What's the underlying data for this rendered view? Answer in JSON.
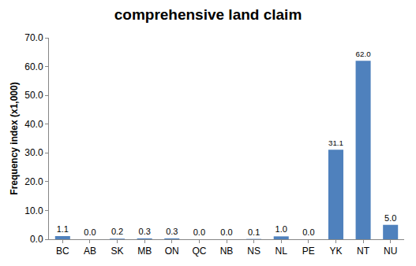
{
  "chart_data": {
    "type": "bar",
    "title": "comprehensive land claim",
    "y_label": "Frequency index (x1,000)",
    "categories": [
      "BC",
      "AB",
      "SK",
      "MB",
      "ON",
      "QC",
      "NB",
      "NS",
      "NL",
      "PE",
      "YK",
      "NT",
      "NU"
    ],
    "values": [
      1.1,
      0.0,
      0.2,
      0.3,
      0.3,
      0.0,
      0.0,
      0.1,
      1.0,
      0.0,
      31.1,
      62.0,
      5.0
    ],
    "value_labels": [
      "1.1",
      "0.0",
      "0.2",
      "0.3",
      "0.3",
      "0.0",
      "0.0",
      "0.1",
      "1.0",
      "0.0",
      "31.1",
      "62.0",
      "5.0"
    ],
    "color": "#4f81bd",
    "ylim": [
      0,
      70
    ],
    "yticks": [
      {
        "value": 0,
        "label": "0.0"
      },
      {
        "value": 10,
        "label": "10.0"
      },
      {
        "value": 20,
        "label": "20.0"
      },
      {
        "value": 30,
        "label": "30.0"
      },
      {
        "value": 40,
        "label": "40.0"
      },
      {
        "value": 50,
        "label": "50.0"
      },
      {
        "value": 60,
        "label": "60.0"
      },
      {
        "value": 70,
        "label": "70.0"
      }
    ],
    "grid": false,
    "data_labels": true
  }
}
